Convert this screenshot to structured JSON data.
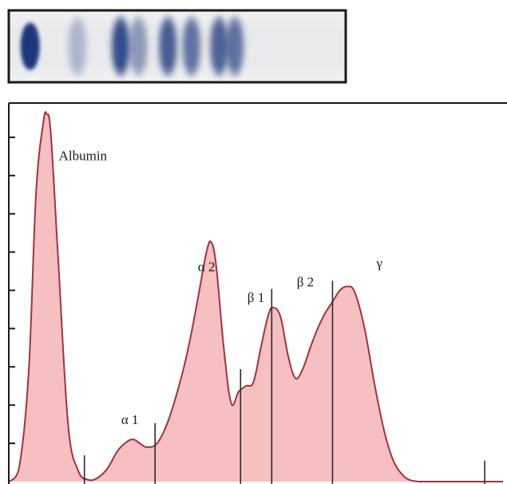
{
  "colors": {
    "curve_stroke": "#a2333b",
    "curve_fill": "#f5b8ba",
    "band_blue": "#102d75",
    "gel_background": "#e9eaec",
    "frame": "#1a1a1a"
  },
  "chart_data": {
    "type": "area",
    "title": "",
    "xlabel": "",
    "ylabel": "",
    "xlim": [
      0,
      100
    ],
    "ylim": [
      0,
      10
    ],
    "grid": false,
    "legend": "none",
    "y_ticks": [
      1,
      2,
      3,
      4,
      5,
      6,
      7,
      8,
      9
    ],
    "curve": {
      "x": [
        0,
        2,
        4,
        5.5,
        7,
        7.7,
        8.5,
        10,
        12,
        14,
        16,
        18,
        20,
        22,
        24,
        25.3,
        26.5,
        28,
        30,
        32,
        34,
        36,
        38,
        40,
        41,
        42,
        43.5,
        45,
        46.5,
        48,
        49.5,
        51,
        52.5,
        53.5,
        55,
        56.5,
        58,
        59.5,
        61,
        62.5,
        64,
        65.5,
        67,
        68.5,
        70,
        72,
        74,
        76,
        77.8,
        79.5,
        81,
        83,
        85,
        87,
        89,
        91,
        93,
        95,
        96.3,
        97.5,
        99,
        100
      ],
      "y": [
        0,
        0.3,
        2.8,
        7.5,
        9.4,
        9.6,
        9.1,
        5.8,
        1.5,
        0.3,
        0.05,
        0.1,
        0.35,
        0.8,
        1.05,
        1.1,
        1.0,
        0.9,
        1.0,
        1.5,
        2.3,
        3.3,
        4.6,
        6.0,
        6.25,
        5.6,
        3.5,
        2.05,
        2.35,
        2.5,
        2.6,
        3.5,
        4.35,
        4.55,
        4.3,
        3.3,
        2.7,
        2.95,
        3.5,
        4.0,
        4.4,
        4.7,
        5.0,
        5.1,
        4.95,
        4.0,
        2.55,
        1.3,
        0.55,
        0.2,
        0.05,
        0,
        0,
        0,
        0,
        0,
        0,
        0,
        0,
        0,
        0,
        0
      ]
    },
    "dividers": [
      15.3,
      29.6,
      46.9,
      53.2,
      65.5,
      96.3
    ],
    "annotations": [
      {
        "text": "Albumin",
        "x": 15,
        "y": 8.4
      },
      {
        "text": "α 1",
        "x": 24.5,
        "y": 1.5
      },
      {
        "text": "α 2",
        "x": 40,
        "y": 5.5
      },
      {
        "text": "β 1",
        "x": 50,
        "y": 4.7
      },
      {
        "text": "β 2",
        "x": 60,
        "y": 5.1
      },
      {
        "text": "γ",
        "x": 75,
        "y": 5.6
      }
    ],
    "gel_bands": [
      {
        "x": 5,
        "intensity": 1.0
      },
      {
        "x": 17,
        "intensity": 0.15
      },
      {
        "x": 28,
        "intensity": 0.85
      },
      {
        "x": 32.5,
        "intensity": 0.35
      },
      {
        "x": 40,
        "intensity": 0.75
      },
      {
        "x": 46,
        "intensity": 0.6
      },
      {
        "x": 53,
        "intensity": 0.7
      },
      {
        "x": 57,
        "intensity": 0.6
      }
    ]
  }
}
